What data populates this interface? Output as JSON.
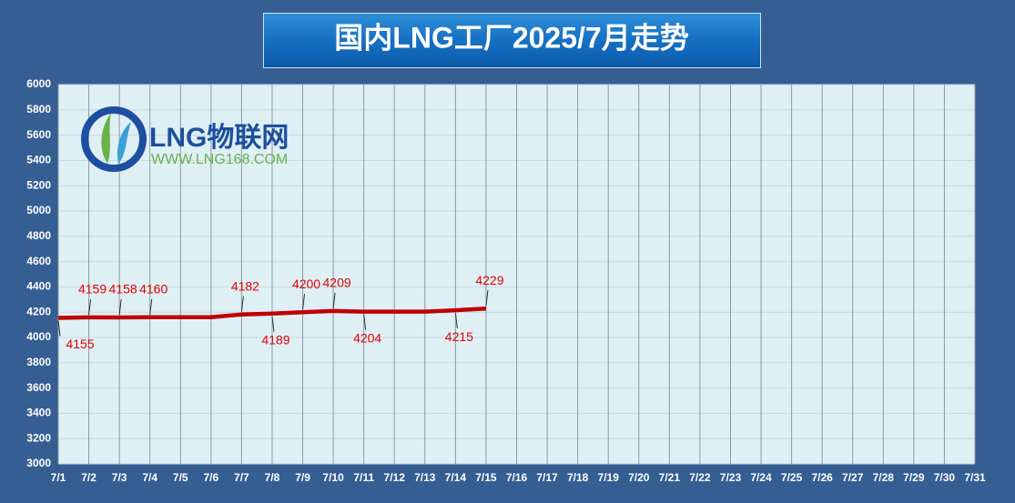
{
  "chart_data": {
    "type": "line",
    "title": "国内LNG工厂2025/7月走势",
    "watermark": {
      "brand": "LNG物联网",
      "url": "WWW.LNG168.COM"
    },
    "categories": [
      "7/1",
      "7/2",
      "7/3",
      "7/4",
      "7/5",
      "7/6",
      "7/7",
      "7/8",
      "7/9",
      "7/10",
      "7/11",
      "7/12",
      "7/13",
      "7/14",
      "7/15",
      "7/16",
      "7/17",
      "7/18",
      "7/19",
      "7/20",
      "7/21",
      "7/22",
      "7/23",
      "7/24",
      "7/25",
      "7/26",
      "7/27",
      "7/28",
      "7/29",
      "7/30",
      "7/31"
    ],
    "series": [
      {
        "name": "LNG",
        "color": "#c00000",
        "values": [
          4155,
          4159,
          4158,
          4160,
          4160,
          4160,
          4182,
          4189,
          4200,
          4209,
          4204,
          4204,
          4204,
          4215,
          4229,
          null,
          null,
          null,
          null,
          null,
          null,
          null,
          null,
          null,
          null,
          null,
          null,
          null,
          null,
          null,
          null
        ],
        "value_labels": [
          "4155",
          "4159",
          "4158",
          "4160",
          null,
          null,
          "4182",
          "4189",
          "4200",
          "4209",
          "4204",
          null,
          null,
          "4215",
          "4229",
          null,
          null,
          null,
          null,
          null,
          null,
          null,
          null,
          null,
          null,
          null,
          null,
          null,
          null,
          null,
          null
        ]
      }
    ],
    "ylim": [
      3000,
      6000
    ],
    "yticks": [
      3000,
      3200,
      3400,
      3600,
      3800,
      4000,
      4200,
      4400,
      4600,
      4800,
      5000,
      5200,
      5400,
      5600,
      5800,
      6000
    ],
    "grid": true
  }
}
